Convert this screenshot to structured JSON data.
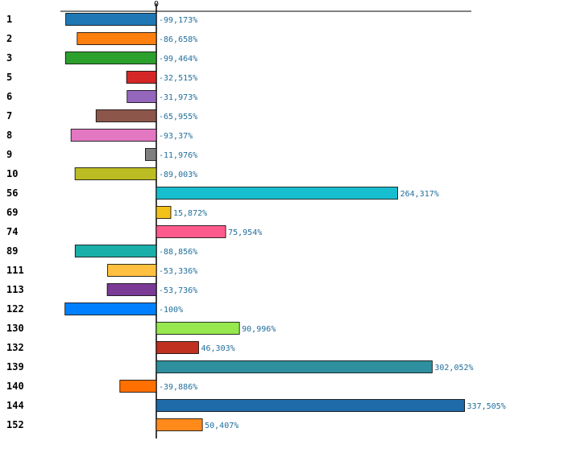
{
  "chart_data": {
    "type": "bar",
    "orientation": "horizontal",
    "title": "",
    "xlabel": "",
    "ylabel": "",
    "axis_tick_label": "0",
    "xlim": [
      -100,
      337.505
    ],
    "grid": false,
    "legend": "none",
    "categories": [
      "1",
      "2",
      "3",
      "5",
      "6",
      "7",
      "8",
      "9",
      "10",
      "56",
      "69",
      "74",
      "89",
      "111",
      "113",
      "122",
      "130",
      "132",
      "139",
      "140",
      "144",
      "152"
    ],
    "values": [
      -99.173,
      -86.658,
      -99.464,
      -32.515,
      -31.973,
      -65.955,
      -93.37,
      -11.976,
      -89.003,
      264.317,
      15.872,
      75.954,
      -88.856,
      -53.336,
      -53.736,
      -100,
      90.996,
      46.303,
      302.052,
      -39.886,
      337.505,
      50.407
    ],
    "labels": [
      "-99,173%",
      "-86,658%",
      "-99,464%",
      "-32,515%",
      "-31,973%",
      "-65,955%",
      "-93,37%",
      "-11,976%",
      "-89,003%",
      "264,317%",
      "15,872%",
      "75,954%",
      "-88,856%",
      "-53,336%",
      "-53,736%",
      "-100%",
      "90,996%",
      "46,303%",
      "302,052%",
      "-39,886%",
      "337,505%",
      "50,407%"
    ],
    "colors": [
      "#1f77b4",
      "#ff7f0e",
      "#2ca02c",
      "#d62728",
      "#9467bd",
      "#8c564b",
      "#e377c2",
      "#7f7f7f",
      "#bcbd22",
      "#17becf",
      "#f2c21b",
      "#ff5a8c",
      "#1aafa8",
      "#ffc03f",
      "#7b3a96",
      "#0080ff",
      "#97e84e",
      "#c0311f",
      "#2e8f9e",
      "#ff7000",
      "#1f6aa8",
      "#ff8a1a"
    ]
  }
}
